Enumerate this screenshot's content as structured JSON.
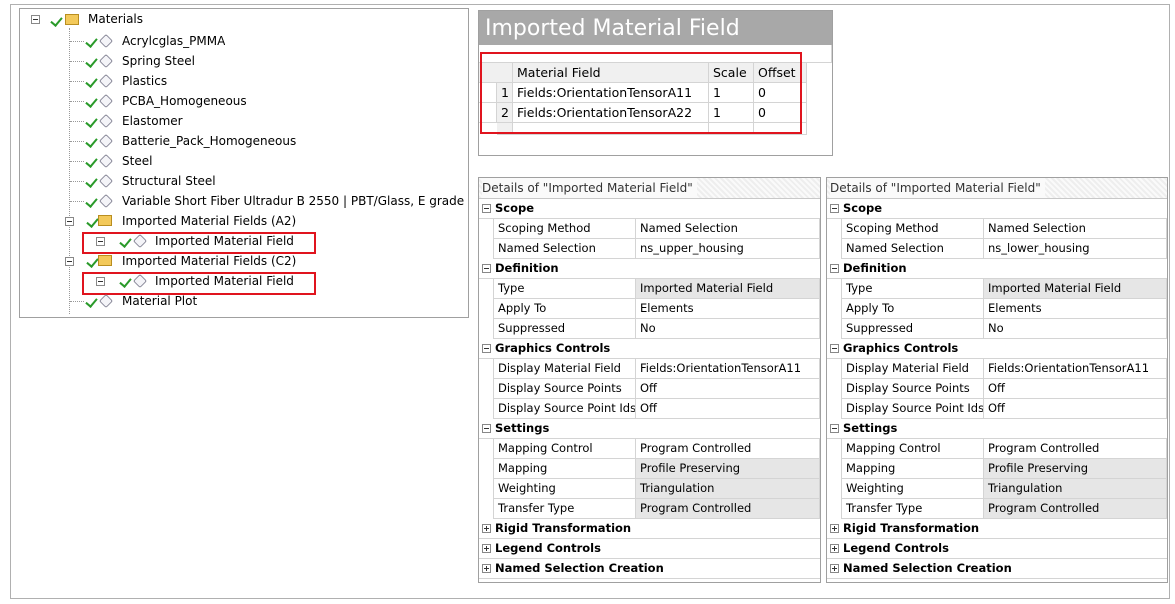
{
  "tree": {
    "root": "Materials",
    "items": [
      {
        "label": "Acrylcglas_PMMA"
      },
      {
        "label": "Spring Steel"
      },
      {
        "label": "Plastics"
      },
      {
        "label": "PCBA_Homogeneous"
      },
      {
        "label": "Elastomer"
      },
      {
        "label": "Batterie_Pack_Homogeneous"
      },
      {
        "label": "Steel"
      },
      {
        "label": "Structural Steel"
      },
      {
        "label": "Variable Short Fiber Ultradur B 2550 | PBT/Glass, E grade"
      },
      {
        "label": "Imported Material Fields (A2)",
        "children": [
          {
            "label": "Imported Material Field"
          }
        ]
      },
      {
        "label": "Imported Material Fields (C2)",
        "children": [
          {
            "label": "Imported Material Field"
          }
        ]
      },
      {
        "label": "Material Plot"
      }
    ]
  },
  "table": {
    "title": "Imported Material Field",
    "columns": [
      "Material Field",
      "Scale",
      "Offset"
    ],
    "rows": [
      [
        1,
        "Fields:OrientationTensorA11",
        1,
        0
      ],
      [
        2,
        "Fields:OrientationTensorA22",
        1,
        0
      ]
    ]
  },
  "details": [
    {
      "title": "Details of \"Imported Material Field\"",
      "sections": [
        {
          "name": "Scope",
          "rows": [
            {
              "label": "Scoping Method",
              "value": "Named Selection"
            },
            {
              "label": "Named Selection",
              "value": "ns_upper_housing"
            }
          ]
        },
        {
          "name": "Definition",
          "rows": [
            {
              "label": "Type",
              "value": "Imported Material Field",
              "shaded": true
            },
            {
              "label": "Apply To",
              "value": "Elements"
            },
            {
              "label": "Suppressed",
              "value": "No"
            }
          ]
        },
        {
          "name": "Graphics Controls",
          "rows": [
            {
              "label": "Display Material Field",
              "value": "Fields:OrientationTensorA11"
            },
            {
              "label": "Display Source Points",
              "value": "Off"
            },
            {
              "label": "Display Source Point Ids",
              "value": "Off"
            }
          ]
        },
        {
          "name": "Settings",
          "rows": [
            {
              "label": "Mapping Control",
              "value": "Program Controlled"
            },
            {
              "label": "Mapping",
              "value": "Profile Preserving",
              "shaded": true
            },
            {
              "label": "Weighting",
              "value": "Triangulation",
              "shaded": true
            },
            {
              "label": "Transfer Type",
              "value": "Program Controlled",
              "shaded": true
            }
          ]
        },
        {
          "name": "Rigid Transformation"
        },
        {
          "name": "Legend Controls"
        },
        {
          "name": "Named Selection Creation"
        }
      ]
    },
    {
      "title": "Details of \"Imported Material Field\"",
      "sections": [
        {
          "name": "Scope",
          "rows": [
            {
              "label": "Scoping Method",
              "value": "Named Selection"
            },
            {
              "label": "Named Selection",
              "value": "ns_lower_housing"
            }
          ]
        },
        {
          "name": "Definition",
          "rows": [
            {
              "label": "Type",
              "value": "Imported Material Field",
              "shaded": true
            },
            {
              "label": "Apply To",
              "value": "Elements"
            },
            {
              "label": "Suppressed",
              "value": "No"
            }
          ]
        },
        {
          "name": "Graphics Controls",
          "rows": [
            {
              "label": "Display Material Field",
              "value": "Fields:OrientationTensorA11"
            },
            {
              "label": "Display Source Points",
              "value": "Off"
            },
            {
              "label": "Display Source Point Ids",
              "value": "Off"
            }
          ]
        },
        {
          "name": "Settings",
          "rows": [
            {
              "label": "Mapping Control",
              "value": "Program Controlled"
            },
            {
              "label": "Mapping",
              "value": "Profile Preserving",
              "shaded": true
            },
            {
              "label": "Weighting",
              "value": "Triangulation",
              "shaded": true
            },
            {
              "label": "Transfer Type",
              "value": "Program Controlled",
              "shaded": true
            }
          ]
        },
        {
          "name": "Rigid Transformation"
        },
        {
          "name": "Legend Controls"
        },
        {
          "name": "Named Selection Creation"
        }
      ]
    }
  ]
}
